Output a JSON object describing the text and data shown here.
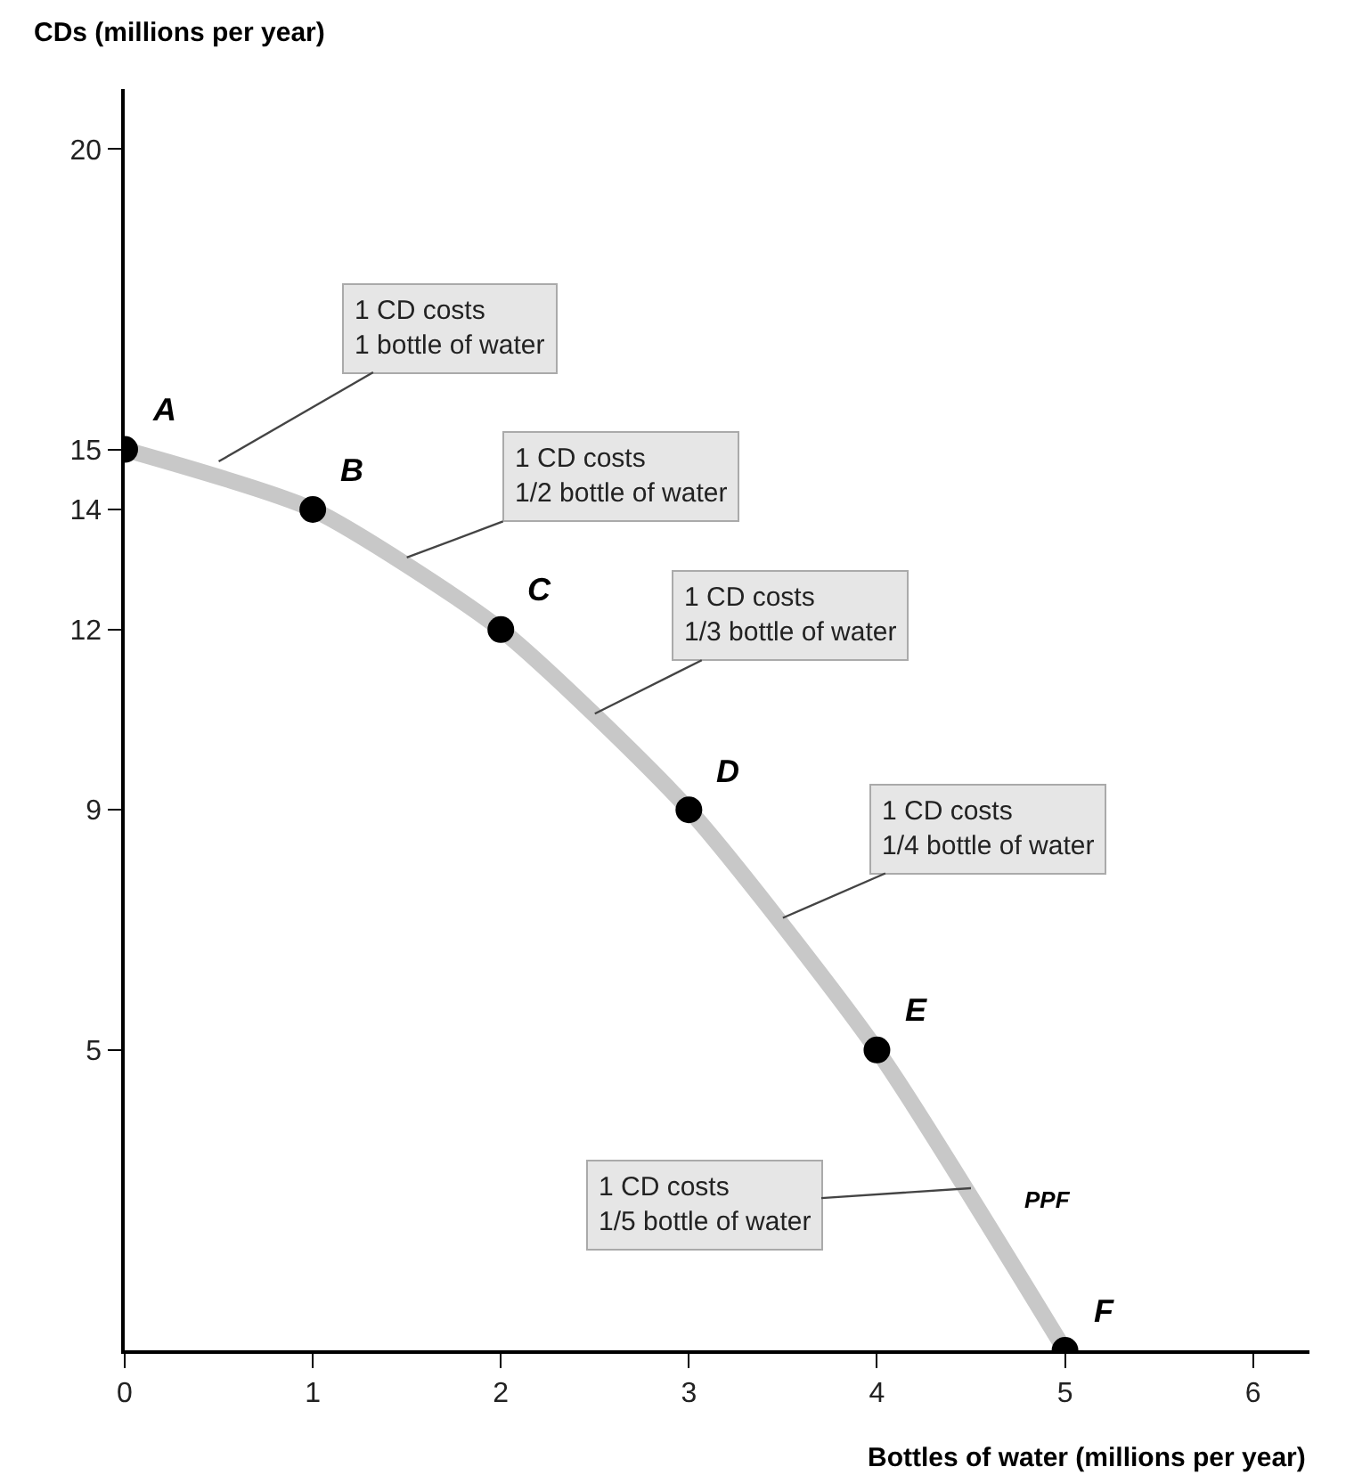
{
  "chart_data": {
    "type": "line",
    "xlabel": "Bottles of water (millions per year)",
    "ylabel": "CDs (millions per year)",
    "x": [
      0,
      1,
      2,
      3,
      4,
      5
    ],
    "series": [
      {
        "name": "PPF",
        "color": "#c8c8c8",
        "values": [
          15,
          14,
          12,
          9,
          5,
          0
        ]
      },
      {
        "type": "scatter",
        "color": "#000000",
        "values": [
          15,
          14,
          12,
          9,
          5,
          0
        ]
      }
    ],
    "legend": false,
    "xlim": [
      0,
      6.3
    ],
    "xticks": [
      0,
      1,
      2,
      3,
      4,
      5,
      6
    ],
    "ylim": [
      0,
      21
    ],
    "yticks": [
      5,
      9,
      12,
      14,
      15,
      20
    ],
    "annotations": [
      {
        "text": "A",
        "x": 0,
        "y": 15
      },
      {
        "text": "B",
        "x": 1,
        "y": 14
      },
      {
        "text": "C",
        "x": 2,
        "y": 12
      },
      {
        "text": "D",
        "x": 3,
        "y": 9
      },
      {
        "text": "E",
        "x": 4,
        "y": 5
      },
      {
        "text": "F",
        "x": 5,
        "y": 0
      },
      {
        "text": "1 CD costs\n1 bottle of water",
        "x": 0.5,
        "y": 14.8
      },
      {
        "text": "1 CD costs\n1/2 bottle of water",
        "x": 1.5,
        "y": 13.2
      },
      {
        "text": "1 CD costs\n1/3 bottle of water",
        "x": 2.5,
        "y": 10.6
      },
      {
        "text": "1 CD costs\n1/4 bottle of water",
        "x": 3.5,
        "y": 7.2
      },
      {
        "text": "1 CD costs\n1/5 bottle of water",
        "x": 4.5,
        "y": 2.7
      }
    ]
  }
}
